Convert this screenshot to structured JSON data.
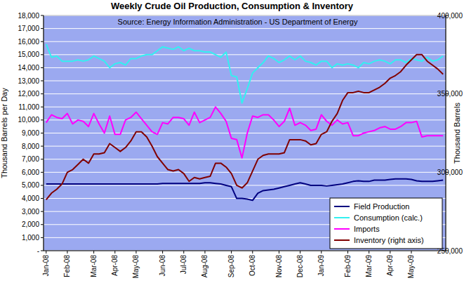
{
  "chart_data": {
    "type": "line",
    "title": "Weekly Crude Oil Production, Consumption & Inventory",
    "subtitle": "Source: Energy Information Administration - US Department of Energy",
    "y_label": "Thousand Barrels per Day",
    "y2_label": "Thousand Barrels",
    "categories": [
      "Jan-08",
      null,
      null,
      null,
      "Feb-08",
      null,
      null,
      null,
      null,
      "Mar-08",
      null,
      null,
      null,
      "Apr-08",
      null,
      null,
      null,
      "May-08",
      null,
      null,
      null,
      null,
      "Jun-08",
      null,
      null,
      null,
      "Jul-08",
      null,
      null,
      null,
      "Aug-08",
      null,
      null,
      null,
      null,
      "Sep-08",
      null,
      null,
      null,
      "Oct-08",
      null,
      null,
      null,
      null,
      "Nov-08",
      null,
      null,
      null,
      "Dec-08",
      null,
      null,
      null,
      "Jan-09",
      null,
      null,
      null,
      null,
      "Feb-09",
      null,
      null,
      null,
      "Mar-09",
      null,
      null,
      null,
      "Apr-09",
      null,
      null,
      null,
      "May-09",
      null,
      null,
      null,
      null,
      null,
      null
    ],
    "series": [
      {
        "name": "Field Production",
        "color": "#000080",
        "values": [
          5100,
          5100,
          5100,
          5100,
          5100,
          5100,
          5100,
          5100,
          5100,
          5100,
          5100,
          5100,
          5100,
          5100,
          5100,
          5100,
          5100,
          5100,
          5100,
          5100,
          5100,
          5100,
          5150,
          5150,
          5150,
          5150,
          5150,
          5150,
          5150,
          5150,
          5200,
          5200,
          5150,
          5100,
          5000,
          4900,
          4000,
          4000,
          3950,
          3850,
          4400,
          4600,
          4650,
          4700,
          4800,
          4900,
          5000,
          5100,
          5200,
          5100,
          5000,
          5000,
          5000,
          4950,
          5000,
          5050,
          5100,
          5200,
          5300,
          5350,
          5300,
          5300,
          5400,
          5400,
          5400,
          5450,
          5500,
          5500,
          5500,
          5450,
          5350,
          5300,
          5300,
          5300,
          5350,
          5400
        ]
      },
      {
        "name": "Consumption (calc.)",
        "color": "#33f0f0",
        "values": [
          15800,
          14800,
          14900,
          14500,
          14500,
          14500,
          14600,
          14500,
          14600,
          14900,
          14700,
          14500,
          14000,
          14300,
          14400,
          14200,
          14700,
          14700,
          14900,
          15000,
          15000,
          15300,
          15600,
          15500,
          15400,
          15600,
          15300,
          15500,
          15300,
          15300,
          15200,
          15200,
          15000,
          14800,
          15200,
          13400,
          13300,
          11300,
          12400,
          13600,
          14000,
          14400,
          14900,
          14700,
          14400,
          14600,
          14900,
          14600,
          14900,
          14500,
          14400,
          14200,
          14500,
          14500,
          14000,
          14300,
          14200,
          14300,
          14200,
          14000,
          14400,
          14300,
          14500,
          14600,
          14500,
          14300,
          14600,
          14600,
          14400,
          14700,
          14600,
          14500,
          14800,
          14500,
          14600,
          14900
        ]
      },
      {
        "name": "Imports",
        "color": "#ff00ff",
        "values": [
          9800,
          10400,
          10200,
          10100,
          10500,
          9700,
          10000,
          9900,
          9500,
          10500,
          9700,
          9000,
          10300,
          8900,
          8900,
          10000,
          10200,
          10600,
          10100,
          9600,
          9100,
          8900,
          9800,
          9700,
          10200,
          10200,
          10100,
          9600,
          10600,
          9800,
          10000,
          10200,
          11000,
          10500,
          9900,
          8600,
          8500,
          7100,
          9000,
          10300,
          10200,
          10400,
          10400,
          10000,
          9500,
          9900,
          10900,
          9600,
          9800,
          9600,
          9200,
          9300,
          10400,
          9900,
          9600,
          10000,
          9700,
          9800,
          8800,
          8800,
          9000,
          9100,
          9200,
          9400,
          9500,
          9300,
          9300,
          9500,
          9800,
          9800,
          9900,
          8700,
          8800,
          8800,
          8800,
          8800
        ]
      },
      {
        "name": "Inventory (right axis)",
        "color": "#800000",
        "axis": "y2",
        "values": [
          282500,
          286700,
          289200,
          292500,
          300000,
          301700,
          305000,
          308300,
          305800,
          311700,
          311700,
          312500,
          318300,
          315800,
          313300,
          315800,
          320000,
          325800,
          325800,
          322500,
          316700,
          310000,
          305800,
          301700,
          300800,
          301700,
          299200,
          294200,
          296700,
          295800,
          296700,
          297500,
          305800,
          305800,
          303300,
          299200,
          291700,
          290000,
          293300,
          300800,
          308300,
          310800,
          311700,
          311700,
          311700,
          312500,
          320800,
          320800,
          320800,
          320000,
          317500,
          318300,
          324200,
          325800,
          332500,
          337500,
          345800,
          350800,
          350800,
          351700,
          350800,
          350800,
          352500,
          354200,
          356700,
          360000,
          361700,
          364200,
          368300,
          371700,
          375000,
          375000,
          370800,
          368300,
          365800,
          362500
        ]
      }
    ],
    "ylim": [
      0,
      18000
    ],
    "yticks": [
      {
        "value": 0,
        "label": "-"
      },
      {
        "value": 1000,
        "label": "1,000"
      },
      {
        "value": 2000,
        "label": "2,000"
      },
      {
        "value": 3000,
        "label": "3,000"
      },
      {
        "value": 4000,
        "label": "4,000"
      },
      {
        "value": 5000,
        "label": "5,000"
      },
      {
        "value": 6000,
        "label": "6,000"
      },
      {
        "value": 7000,
        "label": "7,000"
      },
      {
        "value": 8000,
        "label": "8,000"
      },
      {
        "value": 9000,
        "label": "9,000"
      },
      {
        "value": 10000,
        "label": "10,000"
      },
      {
        "value": 11000,
        "label": "11,000"
      },
      {
        "value": 12000,
        "label": "12,000"
      },
      {
        "value": 13000,
        "label": "13,000"
      },
      {
        "value": 14000,
        "label": "14,000"
      },
      {
        "value": 15000,
        "label": "15,000"
      },
      {
        "value": 16000,
        "label": "16,000"
      },
      {
        "value": 17000,
        "label": "17,000"
      },
      {
        "value": 18000,
        "label": "18,000"
      }
    ],
    "y2lim": [
      250000,
      400000
    ],
    "y2ticks": [
      {
        "value": 250000,
        "label": "250,000"
      },
      {
        "value": 300000,
        "label": "300,000"
      },
      {
        "value": 350000,
        "label": "350,000"
      },
      {
        "value": 400000,
        "label": "400,000"
      }
    ],
    "grid": true,
    "legend": "lower right"
  }
}
